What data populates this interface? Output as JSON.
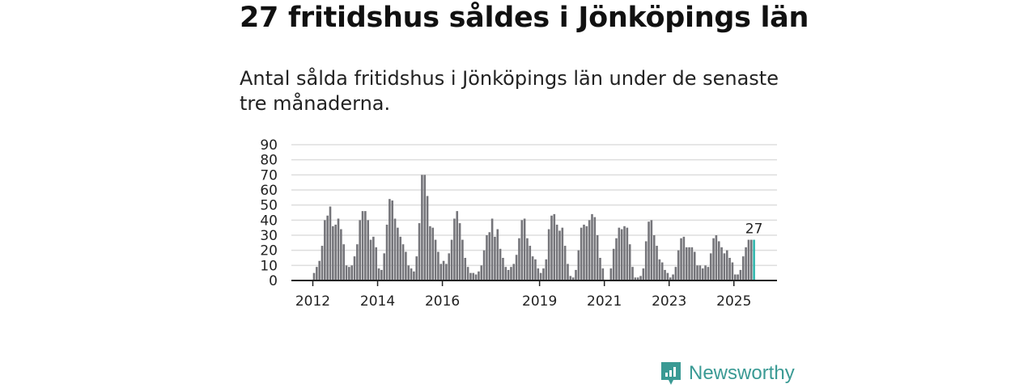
{
  "title": "27 fritidshus såldes i Jönköpings län",
  "subtitle": "Antal sålda fritidshus i Jönköpings län under de senaste tre månaderna.",
  "brand": {
    "name": "Newsworthy",
    "icon": "newsworthy-logo-icon",
    "color": "#3a9a94"
  },
  "chart_data": {
    "type": "bar",
    "title": "27 fritidshus såldes i Jönköpings län",
    "xlabel": "",
    "ylabel": "",
    "ylim": [
      0,
      90
    ],
    "yticks": [
      "0",
      "10",
      "20",
      "30",
      "40",
      "50",
      "60",
      "70",
      "80",
      "90"
    ],
    "start": "2012-01",
    "xticks": [
      {
        "label": "2012",
        "index": 0
      },
      {
        "label": "2014",
        "index": 24
      },
      {
        "label": "2016",
        "index": 48
      },
      {
        "label": "2019",
        "index": 84
      },
      {
        "label": "2021",
        "index": 108
      },
      {
        "label": "2023",
        "index": 132
      },
      {
        "label": "2025",
        "index": 156
      }
    ],
    "bar_color": "#75757a",
    "highlight_color": "#2fb5ac",
    "highlight_label": "27",
    "values": [
      5,
      9,
      13,
      23,
      40,
      43,
      49,
      36,
      37,
      41,
      34,
      24,
      10,
      9,
      10,
      16,
      24,
      40,
      46,
      46,
      40,
      27,
      29,
      22,
      8,
      7,
      18,
      37,
      54,
      53,
      41,
      35,
      29,
      24,
      19,
      10,
      8,
      6,
      16,
      38,
      70,
      70,
      56,
      36,
      35,
      27,
      19,
      11,
      13,
      11,
      18,
      27,
      41,
      46,
      38,
      27,
      15,
      9,
      5,
      5,
      4,
      6,
      10,
      20,
      30,
      32,
      41,
      29,
      34,
      21,
      15,
      9,
      7,
      9,
      11,
      17,
      28,
      40,
      41,
      28,
      23,
      16,
      14,
      8,
      5,
      8,
      14,
      34,
      43,
      44,
      37,
      33,
      35,
      23,
      11,
      3,
      2,
      7,
      20,
      35,
      37,
      36,
      40,
      44,
      42,
      30,
      15,
      8,
      0,
      0,
      8,
      21,
      28,
      35,
      34,
      36,
      35,
      24,
      9,
      2,
      2,
      3,
      8,
      26,
      39,
      40,
      30,
      23,
      14,
      12,
      7,
      5,
      2,
      4,
      9,
      20,
      28,
      29,
      22,
      22,
      22,
      19,
      10,
      10,
      8,
      10,
      9,
      18,
      28,
      30,
      26,
      22,
      18,
      20,
      15,
      12,
      4,
      4,
      7,
      16,
      22,
      27,
      27,
      27
    ]
  }
}
